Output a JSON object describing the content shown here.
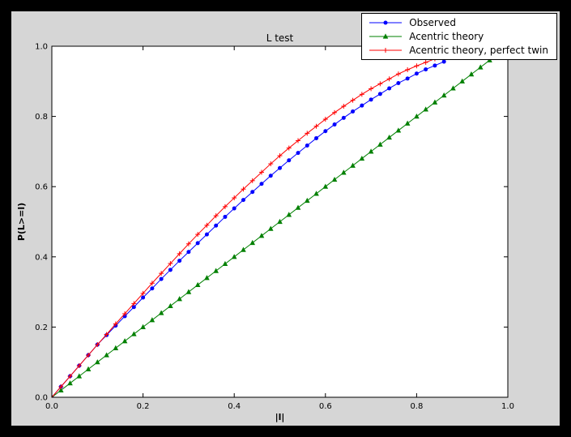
{
  "window": {
    "background": "#000000"
  },
  "figure": {
    "facecolor": "#d6d6d6",
    "axes_facecolor": "#ffffff",
    "frame_color": "#000000"
  },
  "chart_data": {
    "type": "line",
    "title": "L test",
    "xlabel": "|l|",
    "ylabel": "P(L>=l)",
    "xlim": [
      0.0,
      1.0
    ],
    "ylim": [
      0.0,
      1.0
    ],
    "xticks": [
      0.0,
      0.2,
      0.4,
      0.6,
      0.8,
      1.0
    ],
    "yticks": [
      0.0,
      0.2,
      0.4,
      0.6,
      0.8,
      1.0
    ],
    "grid": false,
    "legend_position": "upper right",
    "series": [
      {
        "name": "Observed",
        "color": "#0000ff",
        "marker": "circle",
        "x": [
          0,
          0.02,
          0.04,
          0.06,
          0.08,
          0.1,
          0.12,
          0.14,
          0.16,
          0.18,
          0.2,
          0.22,
          0.24,
          0.26,
          0.28,
          0.3,
          0.32,
          0.34,
          0.36,
          0.38,
          0.4,
          0.42,
          0.44,
          0.46,
          0.48,
          0.5,
          0.52,
          0.54,
          0.56,
          0.58,
          0.6,
          0.62,
          0.64,
          0.66,
          0.68,
          0.7,
          0.72,
          0.74,
          0.76,
          0.78,
          0.8,
          0.82,
          0.84,
          0.86
        ],
        "y": [
          0.0,
          0.03,
          0.06,
          0.09,
          0.12,
          0.15,
          0.177,
          0.204,
          0.231,
          0.257,
          0.284,
          0.31,
          0.337,
          0.363,
          0.389,
          0.414,
          0.439,
          0.464,
          0.489,
          0.514,
          0.538,
          0.562,
          0.585,
          0.608,
          0.631,
          0.653,
          0.675,
          0.696,
          0.717,
          0.738,
          0.758,
          0.777,
          0.796,
          0.814,
          0.831,
          0.848,
          0.864,
          0.88,
          0.895,
          0.908,
          0.922,
          0.934,
          0.945,
          0.956
        ]
      },
      {
        "name": "Acentric theory",
        "color": "#008000",
        "marker": "triangle",
        "x": [
          0,
          0.02,
          0.04,
          0.06,
          0.08,
          0.1,
          0.12,
          0.14,
          0.16,
          0.18,
          0.2,
          0.22,
          0.24,
          0.26,
          0.28,
          0.3,
          0.32,
          0.34,
          0.36,
          0.38,
          0.4,
          0.42,
          0.44,
          0.46,
          0.48,
          0.5,
          0.52,
          0.54,
          0.56,
          0.58,
          0.6,
          0.62,
          0.64,
          0.66,
          0.68,
          0.7,
          0.72,
          0.74,
          0.76,
          0.78,
          0.8,
          0.82,
          0.84,
          0.86,
          0.88,
          0.9,
          0.92,
          0.94,
          0.96
        ],
        "y": [
          0,
          0.02,
          0.04,
          0.06,
          0.08,
          0.1,
          0.12,
          0.14,
          0.16,
          0.18,
          0.2,
          0.22,
          0.24,
          0.26,
          0.28,
          0.3,
          0.32,
          0.34,
          0.36,
          0.38,
          0.4,
          0.42,
          0.44,
          0.46,
          0.48,
          0.5,
          0.52,
          0.54,
          0.56,
          0.58,
          0.6,
          0.62,
          0.64,
          0.66,
          0.68,
          0.7,
          0.72,
          0.74,
          0.76,
          0.78,
          0.8,
          0.82,
          0.84,
          0.86,
          0.88,
          0.9,
          0.92,
          0.94,
          0.96
        ]
      },
      {
        "name": "Acentric theory, perfect twin",
        "color": "#ff0000",
        "marker": "plus",
        "x": [
          0,
          0.02,
          0.04,
          0.06,
          0.08,
          0.1,
          0.12,
          0.14,
          0.16,
          0.18,
          0.2,
          0.22,
          0.24,
          0.26,
          0.28,
          0.3,
          0.32,
          0.34,
          0.36,
          0.38,
          0.4,
          0.42,
          0.44,
          0.46,
          0.48,
          0.5,
          0.52,
          0.54,
          0.56,
          0.58,
          0.6,
          0.62,
          0.64,
          0.66,
          0.68,
          0.7,
          0.72,
          0.74,
          0.76,
          0.78,
          0.8,
          0.82,
          0.84,
          0.86,
          0.88,
          0.9,
          0.92,
          0.94
        ],
        "y": [
          0.0,
          0.03,
          0.06,
          0.09,
          0.12,
          0.15,
          0.179,
          0.209,
          0.238,
          0.267,
          0.296,
          0.325,
          0.353,
          0.381,
          0.409,
          0.437,
          0.464,
          0.49,
          0.517,
          0.543,
          0.568,
          0.593,
          0.617,
          0.641,
          0.665,
          0.688,
          0.71,
          0.731,
          0.752,
          0.772,
          0.792,
          0.811,
          0.829,
          0.846,
          0.863,
          0.879,
          0.893,
          0.907,
          0.921,
          0.933,
          0.944,
          0.954,
          0.964,
          0.972,
          0.979,
          0.986,
          0.991,
          0.995
        ]
      }
    ]
  }
}
